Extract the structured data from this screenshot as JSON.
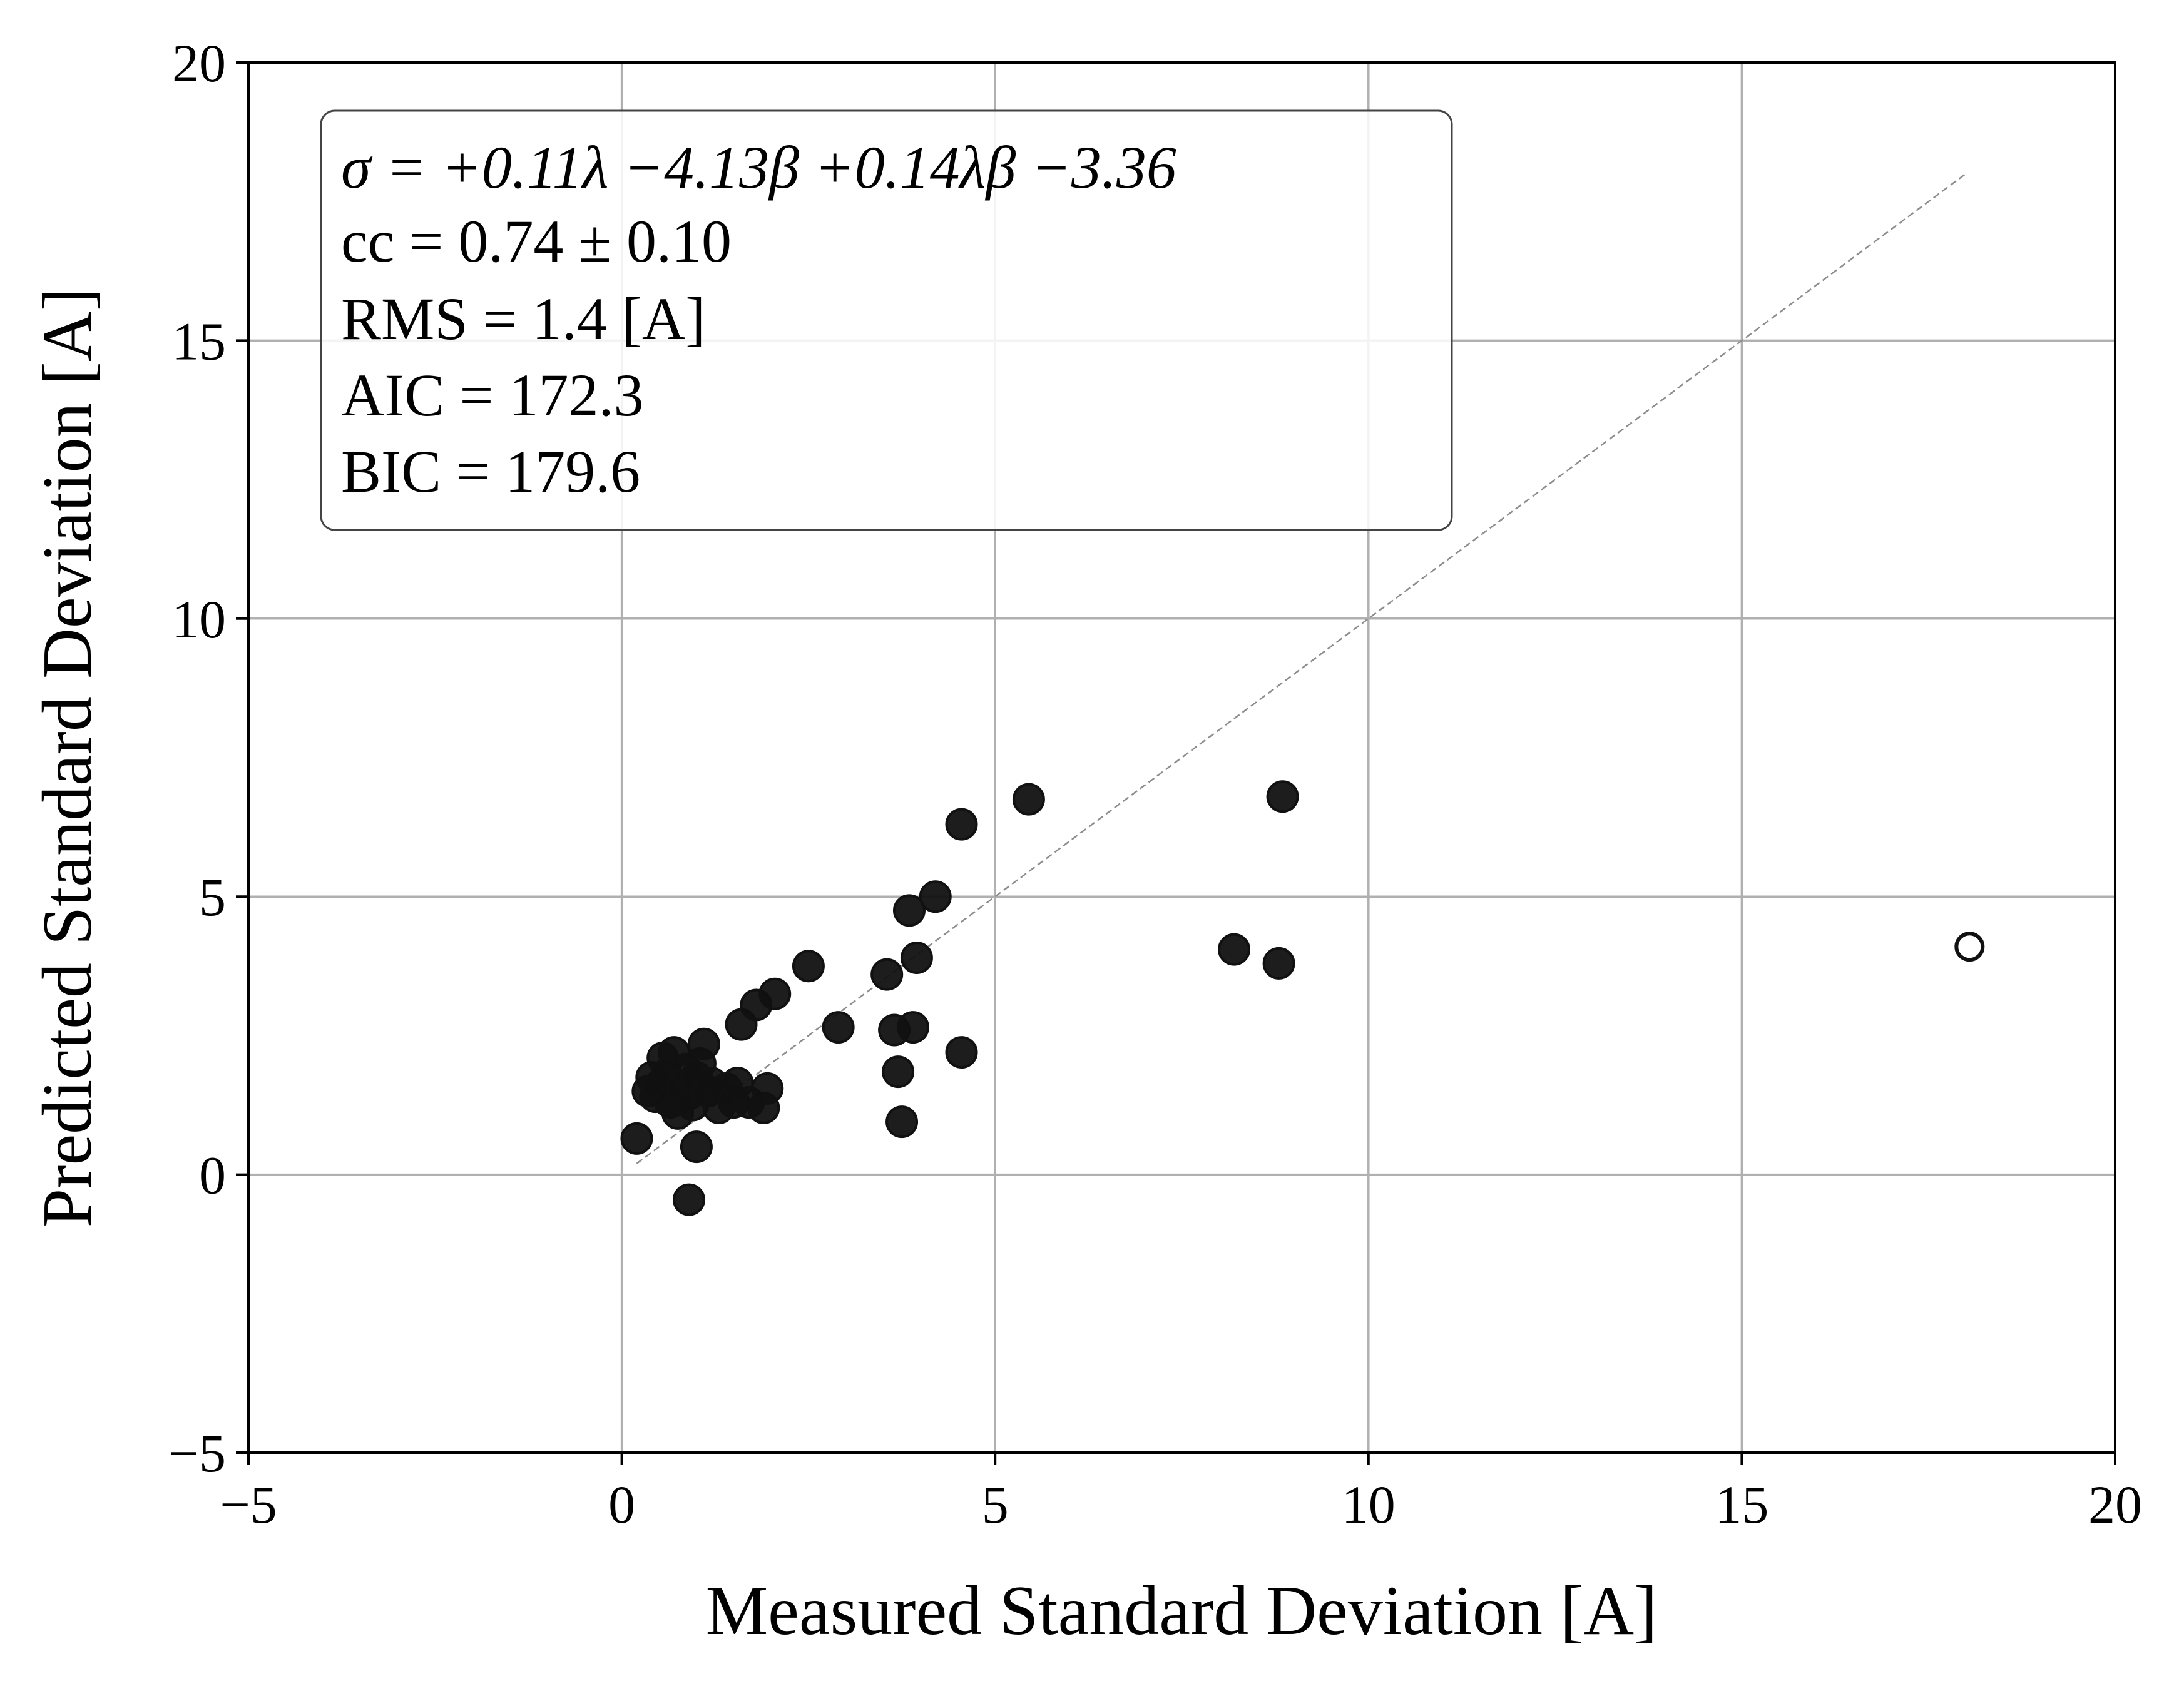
{
  "chart_data": {
    "type": "scatter",
    "xlabel": "Measured Standard Deviation [A]",
    "ylabel": "Predicted Standard Deviation [A]",
    "xlim": [
      -5,
      20
    ],
    "ylim": [
      -5,
      20
    ],
    "xticks": [
      -5,
      0,
      5,
      10,
      15,
      20
    ],
    "yticks": [
      -5,
      0,
      5,
      10,
      15,
      20
    ],
    "xtick_labels": [
      "−5",
      "0",
      "5",
      "10",
      "15",
      "20"
    ],
    "ytick_labels": [
      "−5",
      "0",
      "5",
      "10",
      "15",
      "20"
    ],
    "grid": true,
    "reference_line": {
      "style": "dashed",
      "color": "#8c8c8c",
      "from": [
        0.2,
        0.2
      ],
      "to": [
        18.0,
        18.0
      ]
    },
    "annotation": {
      "placement": "top-left",
      "lines": [
        "σ = +0.11λ −4.13β +0.14λβ −3.36",
        "cc = 0.74 ± 0.10",
        "RMS = 1.4 [A]",
        "AIC = 172.3",
        "BIC = 179.6"
      ]
    },
    "series": [
      {
        "marker": "filled-circle",
        "color": "#111111",
        "points": [
          [
            0.2,
            0.65
          ],
          [
            0.35,
            1.5
          ],
          [
            0.4,
            1.75
          ],
          [
            0.45,
            1.4
          ],
          [
            0.5,
            1.6
          ],
          [
            0.55,
            2.1
          ],
          [
            0.6,
            1.8
          ],
          [
            0.65,
            1.3
          ],
          [
            0.7,
            2.2
          ],
          [
            0.75,
            1.1
          ],
          [
            0.8,
            1.55
          ],
          [
            0.85,
            1.9
          ],
          [
            0.9,
            -0.45
          ],
          [
            0.9,
            1.45
          ],
          [
            0.95,
            1.25
          ],
          [
            1.0,
            0.5
          ],
          [
            1.0,
            1.75
          ],
          [
            1.05,
            2.0
          ],
          [
            1.1,
            2.35
          ],
          [
            1.15,
            1.5
          ],
          [
            1.2,
            1.65
          ],
          [
            1.3,
            1.2
          ],
          [
            1.4,
            1.55
          ],
          [
            1.5,
            1.3
          ],
          [
            1.55,
            1.65
          ],
          [
            1.6,
            2.7
          ],
          [
            1.7,
            1.3
          ],
          [
            1.8,
            3.05
          ],
          [
            1.9,
            1.2
          ],
          [
            1.95,
            1.55
          ],
          [
            2.05,
            3.25
          ],
          [
            2.5,
            3.75
          ],
          [
            2.9,
            2.65
          ],
          [
            3.55,
            3.6
          ],
          [
            3.65,
            2.6
          ],
          [
            3.7,
            1.85
          ],
          [
            3.75,
            0.95
          ],
          [
            3.85,
            4.75
          ],
          [
            3.9,
            2.65
          ],
          [
            3.95,
            3.9
          ],
          [
            4.2,
            5.0
          ],
          [
            4.55,
            2.2
          ],
          [
            4.55,
            6.3
          ],
          [
            5.45,
            6.75
          ],
          [
            8.2,
            4.05
          ],
          [
            8.8,
            3.8
          ],
          [
            8.85,
            6.8
          ]
        ]
      },
      {
        "marker": "open-circle",
        "color": "#111111",
        "points": [
          [
            18.05,
            4.1
          ]
        ]
      }
    ]
  }
}
